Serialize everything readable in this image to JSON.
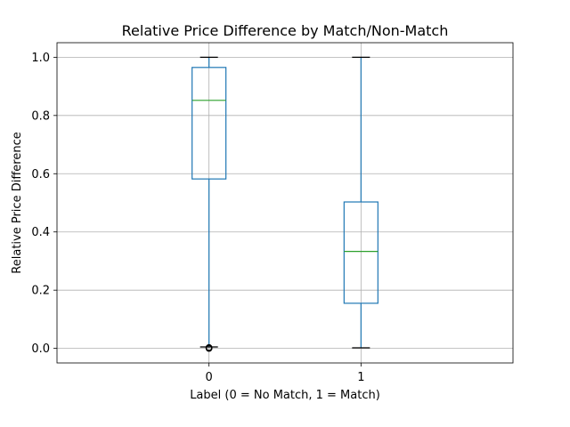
{
  "chart_data": {
    "type": "box",
    "title": "Relative Price Difference by Match/Non-Match",
    "xlabel": "Label (0 = No Match, 1 = Match)",
    "ylabel": "Relative Price Difference",
    "categories": [
      "0",
      "1"
    ],
    "boxes": [
      {
        "label": "0",
        "whisker_low": 0.005,
        "q1": 0.582,
        "median": 0.852,
        "q3": 0.965,
        "whisker_high": 1.0,
        "outliers": [
          0.0,
          0.001,
          0.002,
          0.003
        ]
      },
      {
        "label": "1",
        "whisker_low": 0.002,
        "q1": 0.155,
        "median": 0.333,
        "q3": 0.503,
        "whisker_high": 1.0,
        "outliers": []
      }
    ],
    "ylim": [
      -0.05,
      1.05
    ],
    "yticks": [
      "0.0",
      "0.2",
      "0.4",
      "0.6",
      "0.8",
      "1.0"
    ],
    "grid": true,
    "colors": {
      "box": "#1f77b4",
      "median": "#2ca02c",
      "whisker": "#000000",
      "grid": "#b0b0b0"
    }
  }
}
